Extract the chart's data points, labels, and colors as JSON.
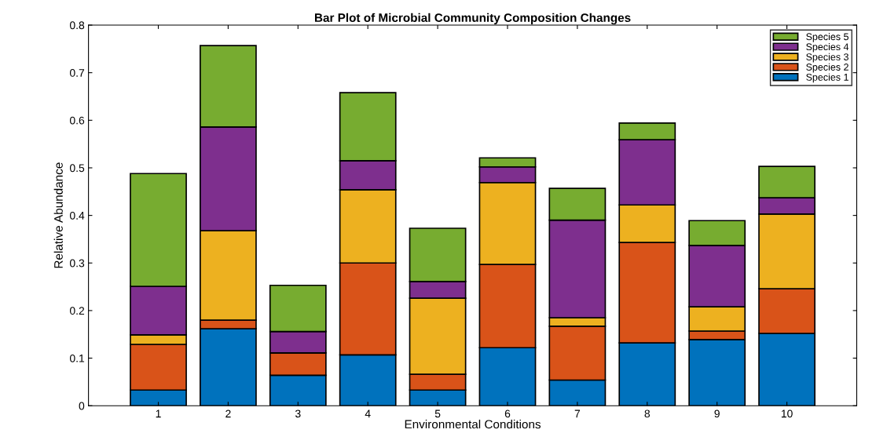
{
  "chart_data": {
    "type": "bar",
    "stacked": true,
    "title": "Bar Plot of Microbial Community Composition Changes",
    "xlabel": "Environmental Conditions",
    "ylabel": "Relative Abundance",
    "categories": [
      "1",
      "2",
      "3",
      "4",
      "5",
      "6",
      "7",
      "8",
      "9",
      "10"
    ],
    "series": [
      {
        "name": "Species 1",
        "color": "#0072bd",
        "values": [
          0.033,
          0.162,
          0.064,
          0.107,
          0.033,
          0.122,
          0.054,
          0.132,
          0.139,
          0.152
        ]
      },
      {
        "name": "Species 2",
        "color": "#d95319",
        "values": [
          0.096,
          0.018,
          0.047,
          0.193,
          0.033,
          0.175,
          0.113,
          0.211,
          0.018,
          0.094
        ]
      },
      {
        "name": "Species 3",
        "color": "#edb120",
        "values": [
          0.02,
          0.188,
          null,
          0.154,
          0.16,
          0.172,
          0.018,
          0.079,
          0.051,
          0.157
        ]
      },
      {
        "name": "Species 4",
        "color": "#7e2f8e",
        "values": [
          0.102,
          0.218,
          0.045,
          0.061,
          0.035,
          0.033,
          0.205,
          0.137,
          0.129,
          0.034
        ]
      },
      {
        "name": "Species 5",
        "color": "#77ac30",
        "values": [
          0.237,
          0.171,
          0.097,
          0.143,
          0.112,
          0.019,
          0.067,
          0.035,
          0.052,
          0.066
        ]
      }
    ],
    "ylim": [
      0,
      0.8
    ],
    "yticks": [
      0,
      0.1,
      0.2,
      0.3,
      0.4,
      0.5,
      0.6,
      0.7,
      0.8
    ],
    "legend": "top right"
  }
}
